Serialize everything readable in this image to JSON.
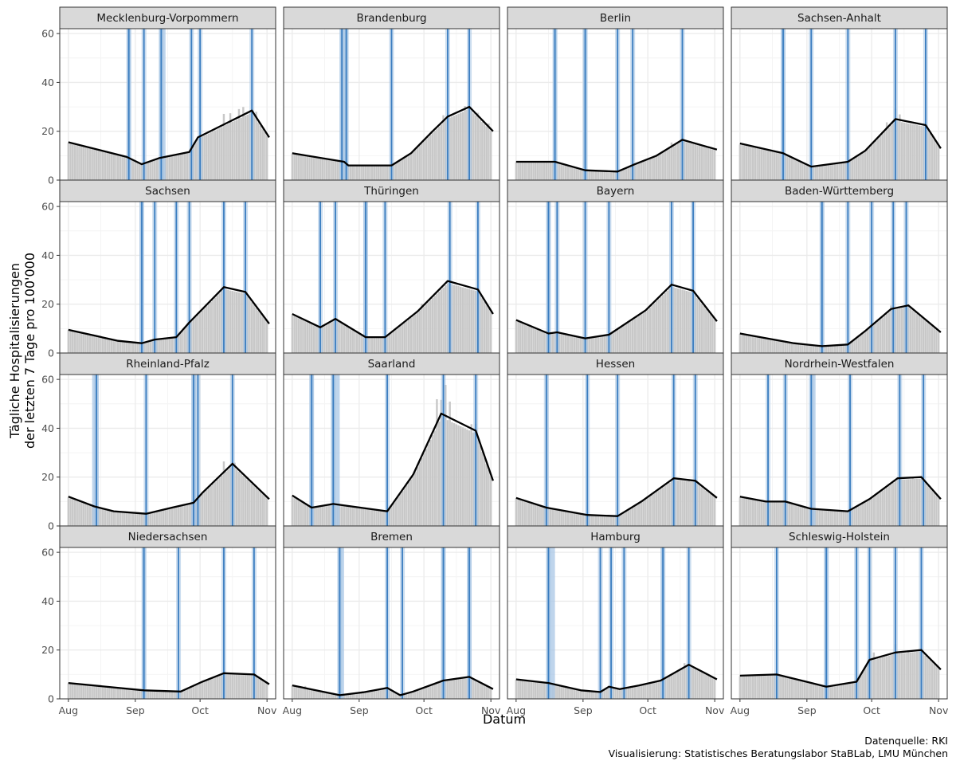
{
  "chart_data": {
    "type": "bar",
    "xlabel": "Datum",
    "ylabel": "Tägliche Hospitalisierungen der letzten 7 Tage pro 100'000",
    "ylabel_lines": [
      "Tägliche Hospitalisierungen",
      "der letzten 7 Tage pro 100'000"
    ],
    "ylim": [
      0,
      62
    ],
    "xlim": [
      -4,
      96
    ],
    "y_ticks": [
      0,
      20,
      40,
      60
    ],
    "x_ticks": [
      {
        "label": "Aug",
        "day": 0
      },
      {
        "label": "Sep",
        "day": 31
      },
      {
        "label": "Oct",
        "day": 61
      },
      {
        "label": "Nov",
        "day": 92
      }
    ],
    "grid": true,
    "caption_lines": [
      "Datenquelle: RKI",
      "Visualisierung: Statistisches Beratungslabor StaBLab, LMU München"
    ],
    "colors": {
      "bar": "#c8c8c8",
      "trend": "#000000",
      "changepoint_line": "#3a7dc0",
      "changepoint_band": "#a9c7e5",
      "strip_bg": "#d9d9d9",
      "grid_major": "#ebebeb"
    },
    "panels": [
      {
        "state": "Mecklenburg-Vorpommern",
        "trend": [
          [
            0,
            15.5
          ],
          [
            27,
            9.5
          ],
          [
            34,
            6.5
          ],
          [
            42,
            9
          ],
          [
            56,
            11.5
          ],
          [
            60,
            17.5
          ],
          [
            85,
            28.5
          ],
          [
            93,
            17.5
          ]
        ],
        "changepoints": [
          28,
          35,
          43,
          57,
          61,
          85
        ],
        "bands": [
          [
            27,
            29
          ],
          [
            42,
            45
          ]
        ],
        "bumps": [
          [
            72,
            5
          ],
          [
            75,
            4
          ],
          [
            79,
            4
          ],
          [
            81,
            4
          ],
          [
            87,
            3
          ]
        ]
      },
      {
        "state": "Brandenburg",
        "trend": [
          [
            0,
            11
          ],
          [
            24,
            7.5
          ],
          [
            26,
            6
          ],
          [
            46,
            6
          ],
          [
            55,
            11
          ],
          [
            65,
            20
          ],
          [
            72,
            26
          ],
          [
            82,
            30
          ],
          [
            93,
            20
          ]
        ],
        "changepoints": [
          23,
          25,
          46,
          72,
          82
        ],
        "bands": [
          [
            22,
            26
          ]
        ],
        "bumps": [
          [
            70,
            3
          ],
          [
            80,
            2
          ],
          [
            86,
            2
          ],
          [
            91,
            2
          ]
        ]
      },
      {
        "state": "Berlin",
        "trend": [
          [
            0,
            7.5
          ],
          [
            18,
            7.5
          ],
          [
            32,
            4
          ],
          [
            47,
            3.5
          ],
          [
            55,
            6.5
          ],
          [
            65,
            10
          ],
          [
            77,
            16.5
          ],
          [
            93,
            12.5
          ]
        ],
        "changepoints": [
          18,
          32,
          47,
          54,
          77
        ],
        "bands": [
          [
            17,
            19
          ],
          [
            31,
            33
          ]
        ],
        "bumps": [
          [
            72,
            2
          ],
          [
            77,
            3
          ]
        ]
      },
      {
        "state": "Sachsen-Anhalt",
        "trend": [
          [
            0,
            15
          ],
          [
            20,
            11
          ],
          [
            33,
            5.5
          ],
          [
            50,
            7.5
          ],
          [
            58,
            12
          ],
          [
            72,
            25
          ],
          [
            86,
            22.5
          ],
          [
            93,
            13
          ]
        ],
        "changepoints": [
          20,
          33,
          50,
          72,
          86
        ],
        "bands": [
          [
            19,
            21
          ]
        ],
        "bumps": [
          [
            68,
            3
          ],
          [
            72,
            5
          ],
          [
            74,
            3
          ]
        ]
      },
      {
        "state": "Sachsen",
        "trend": [
          [
            0,
            9.5
          ],
          [
            23,
            5
          ],
          [
            34,
            4
          ],
          [
            40,
            5.5
          ],
          [
            50,
            6.5
          ],
          [
            56,
            12.5
          ],
          [
            72,
            27
          ],
          [
            82,
            25
          ],
          [
            93,
            12
          ]
        ],
        "changepoints": [
          34,
          40,
          50,
          56,
          72,
          82
        ],
        "bands": [
          [
            33,
            35
          ]
        ],
        "bumps": [
          [
            72,
            2
          ]
        ]
      },
      {
        "state": "Thüringen",
        "trend": [
          [
            0,
            16
          ],
          [
            13,
            10.5
          ],
          [
            20,
            14
          ],
          [
            34,
            6.5
          ],
          [
            43,
            6.5
          ],
          [
            58,
            17
          ],
          [
            72,
            29.5
          ],
          [
            86,
            26
          ],
          [
            93,
            16
          ]
        ],
        "changepoints": [
          13,
          20,
          34,
          43,
          73,
          86
        ],
        "bands": [
          [
            33,
            35
          ]
        ],
        "bumps": [
          [
            60,
            2
          ]
        ]
      },
      {
        "state": "Bayern",
        "trend": [
          [
            0,
            13.5
          ],
          [
            15,
            8
          ],
          [
            19,
            8.5
          ],
          [
            32,
            6
          ],
          [
            43,
            7.5
          ],
          [
            60,
            17.5
          ],
          [
            72,
            28
          ],
          [
            82,
            25.5
          ],
          [
            93,
            13
          ]
        ],
        "changepoints": [
          15,
          19,
          32,
          43,
          72,
          82
        ],
        "bands": [
          [
            14,
            16
          ]
        ],
        "bumps": [
          [
            72,
            2
          ]
        ]
      },
      {
        "state": "Baden-Württemberg",
        "trend": [
          [
            0,
            8
          ],
          [
            25,
            4
          ],
          [
            38,
            2.8
          ],
          [
            50,
            3.5
          ],
          [
            58,
            9
          ],
          [
            70,
            18
          ],
          [
            78,
            19.5
          ],
          [
            93,
            8.5
          ]
        ],
        "changepoints": [
          38,
          50,
          61,
          71,
          77
        ],
        "bands": [
          [
            37,
            39
          ]
        ],
        "bumps": [
          [
            70,
            2
          ]
        ]
      },
      {
        "state": "Rheinland-Pfalz",
        "trend": [
          [
            0,
            12
          ],
          [
            12,
            8
          ],
          [
            21,
            6
          ],
          [
            36,
            5
          ],
          [
            48,
            7.5
          ],
          [
            58,
            9.5
          ],
          [
            62,
            13.5
          ],
          [
            76,
            25.5
          ],
          [
            93,
            11
          ]
        ],
        "changepoints": [
          13,
          36,
          58,
          60,
          76
        ],
        "bands": [
          [
            11,
            14
          ],
          [
            57,
            59
          ]
        ],
        "bumps": [
          [
            72,
            5
          ],
          [
            77,
            2
          ]
        ]
      },
      {
        "state": "Saarland",
        "trend": [
          [
            0,
            12.5
          ],
          [
            9,
            7.5
          ],
          [
            19,
            9
          ],
          [
            44,
            6
          ],
          [
            56,
            21
          ],
          [
            69,
            46
          ],
          [
            85,
            39
          ],
          [
            93,
            18.5
          ]
        ],
        "changepoints": [
          9,
          19,
          44,
          70,
          85
        ],
        "bands": [
          [
            8,
            10
          ],
          [
            18,
            22
          ]
        ],
        "bumps": [
          [
            19,
            3
          ],
          [
            67,
            11
          ],
          [
            69,
            7
          ],
          [
            71,
            14
          ],
          [
            73,
            8
          ],
          [
            83,
            3
          ],
          [
            85,
            4
          ]
        ]
      },
      {
        "state": "Hessen",
        "trend": [
          [
            0,
            11.5
          ],
          [
            14,
            7.5
          ],
          [
            33,
            4.5
          ],
          [
            47,
            4
          ],
          [
            58,
            10
          ],
          [
            73,
            19.5
          ],
          [
            83,
            18.5
          ],
          [
            93,
            11.5
          ]
        ],
        "changepoints": [
          14,
          33,
          47,
          73,
          83
        ],
        "bands": [
          [
            14,
            15
          ]
        ],
        "bumps": [
          [
            80,
            1
          ]
        ]
      },
      {
        "state": "Nordrhein-Westfalen",
        "trend": [
          [
            0,
            12
          ],
          [
            12,
            10
          ],
          [
            21,
            10
          ],
          [
            33,
            7
          ],
          [
            50,
            6
          ],
          [
            60,
            11
          ],
          [
            73,
            19.5
          ],
          [
            84,
            20
          ],
          [
            93,
            11
          ]
        ],
        "changepoints": [
          13,
          21,
          33,
          51,
          74,
          85
        ],
        "bands": [
          [
            33,
            35
          ]
        ],
        "bumps": [
          [
            80,
            1
          ]
        ]
      },
      {
        "state": "Niedersachsen",
        "trend": [
          [
            0,
            6.5
          ],
          [
            35,
            3.5
          ],
          [
            52,
            3
          ],
          [
            62,
            7
          ],
          [
            72,
            10.5
          ],
          [
            86,
            10
          ],
          [
            93,
            6
          ]
        ],
        "changepoints": [
          35,
          51,
          72,
          86
        ],
        "bands": [
          [
            34,
            36
          ]
        ],
        "bumps": []
      },
      {
        "state": "Bremen",
        "trend": [
          [
            0,
            5.5
          ],
          [
            22,
            1.5
          ],
          [
            33,
            2.7
          ],
          [
            44,
            4.5
          ],
          [
            50,
            1.5
          ],
          [
            56,
            3
          ],
          [
            70,
            7.5
          ],
          [
            82,
            9
          ],
          [
            93,
            4
          ]
        ],
        "changepoints": [
          22,
          44,
          51,
          70,
          82
        ],
        "bands": [
          [
            21,
            24
          ],
          [
            69,
            71
          ],
          [
            81,
            83
          ]
        ],
        "bumps": [
          [
            6,
            1
          ]
        ]
      },
      {
        "state": "Hamburg",
        "trend": [
          [
            0,
            8
          ],
          [
            15,
            6.5
          ],
          [
            30,
            3.5
          ],
          [
            39,
            2.8
          ],
          [
            43,
            5
          ],
          [
            48,
            4
          ],
          [
            57,
            5.5
          ],
          [
            67,
            7.5
          ],
          [
            80,
            14
          ],
          [
            93,
            8
          ]
        ],
        "changepoints": [
          15,
          39,
          44,
          50,
          68,
          80
        ],
        "bands": [
          [
            14,
            18
          ],
          [
            67,
            69
          ]
        ],
        "bumps": [
          [
            78,
            2
          ]
        ]
      },
      {
        "state": "Schleswig-Holstein",
        "trend": [
          [
            0,
            9.5
          ],
          [
            17,
            10
          ],
          [
            40,
            5
          ],
          [
            54,
            7
          ],
          [
            60,
            16
          ],
          [
            72,
            19
          ],
          [
            84,
            20
          ],
          [
            93,
            12
          ]
        ],
        "changepoints": [
          17,
          40,
          54,
          60,
          72,
          84
        ],
        "bands": [
          [
            39,
            41
          ]
        ],
        "bumps": [
          [
            62,
            3
          ],
          [
            72,
            4
          ],
          [
            78,
            1
          ]
        ]
      }
    ]
  }
}
